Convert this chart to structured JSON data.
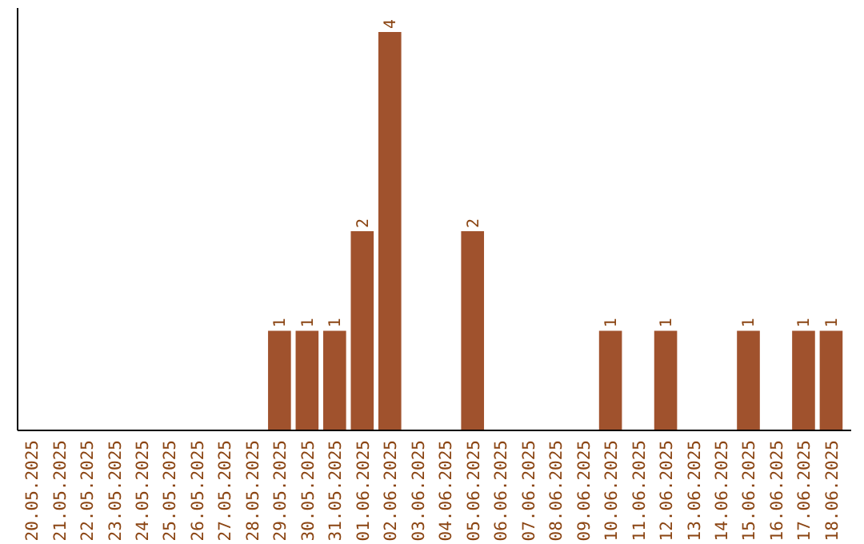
{
  "chart_data": {
    "type": "bar",
    "categories": [
      "20.05.2025",
      "21.05.2025",
      "22.05.2025",
      "23.05.2025",
      "24.05.2025",
      "25.05.2025",
      "26.05.2025",
      "27.05.2025",
      "28.05.2025",
      "29.05.2025",
      "30.05.2025",
      "31.05.2025",
      "01.06.2025",
      "02.06.2025",
      "03.06.2025",
      "04.06.2025",
      "05.06.2025",
      "06.06.2025",
      "07.06.2025",
      "08.06.2025",
      "09.06.2025",
      "10.06.2025",
      "11.06.2025",
      "12.06.2025",
      "13.06.2025",
      "14.06.2025",
      "15.06.2025",
      "16.06.2025",
      "17.06.2025",
      "18.06.2025"
    ],
    "values": [
      0,
      0,
      0,
      0,
      0,
      0,
      0,
      0,
      0,
      1,
      1,
      1,
      2,
      4,
      0,
      0,
      2,
      0,
      0,
      0,
      0,
      1,
      0,
      1,
      0,
      0,
      1,
      0,
      1,
      1
    ],
    "value_labels": [
      null,
      null,
      null,
      null,
      null,
      null,
      null,
      null,
      null,
      "1",
      "1",
      "1",
      "2",
      "4",
      null,
      null,
      "2",
      null,
      null,
      null,
      null,
      "1",
      null,
      "1",
      null,
      null,
      "1",
      null,
      "1",
      "1"
    ],
    "color": "#a0522d"
  }
}
